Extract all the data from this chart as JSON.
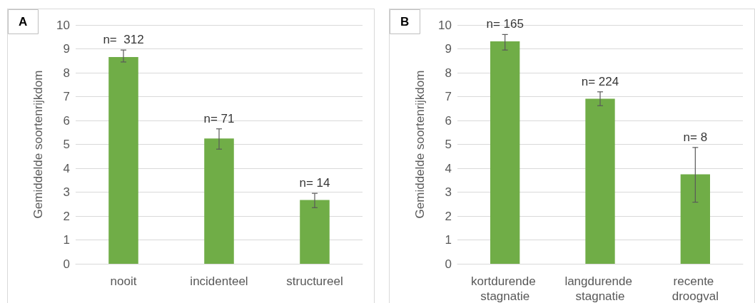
{
  "chart_data": [
    {
      "type": "bar",
      "title": "A",
      "ylabel": "Gemiddelde soortenrijkdom",
      "categories": [
        "nooit",
        "incidenteel",
        "structureel"
      ],
      "values": [
        8.66,
        5.25,
        2.67
      ],
      "errors": [
        [
          8.45,
          8.95
        ],
        [
          4.8,
          5.65
        ],
        [
          2.35,
          2.95
        ]
      ],
      "color": "#70ad47",
      "ylim": [
        0,
        10
      ],
      "yticks": [
        0,
        1,
        2,
        3,
        4,
        5,
        6,
        7,
        8,
        9,
        10
      ],
      "grid": "y",
      "annotations": [
        {
          "text": "n=  312",
          "x": "nooit",
          "y": 8.95
        },
        {
          "text": "n= 71",
          "x": "incidenteel",
          "y": 5.65
        },
        {
          "text": "n= 14",
          "x": "structureel",
          "y": 2.95
        }
      ]
    },
    {
      "type": "bar",
      "title": "B",
      "ylabel": "Gemiddelde soortenrijkdom",
      "categories": [
        "kortdurende stagnatie",
        "langdurende stagnatie",
        "recente droogval"
      ],
      "values": [
        9.31,
        6.91,
        3.75
      ],
      "errors": [
        [
          8.95,
          9.6
        ],
        [
          6.62,
          7.2
        ],
        [
          2.58,
          4.87
        ]
      ],
      "color": "#70ad47",
      "ylim": [
        0,
        10
      ],
      "yticks": [
        0,
        1,
        2,
        3,
        4,
        5,
        6,
        7,
        8,
        9,
        10
      ],
      "grid": "y",
      "annotations": [
        {
          "text": "n= 165",
          "x": "kortdurende stagnatie",
          "y": 9.6
        },
        {
          "text": "n= 224",
          "x": "langdurende stagnatie",
          "y": 7.2
        },
        {
          "text": "n= 8",
          "x": "recente droogval",
          "y": 4.87
        }
      ]
    }
  ]
}
